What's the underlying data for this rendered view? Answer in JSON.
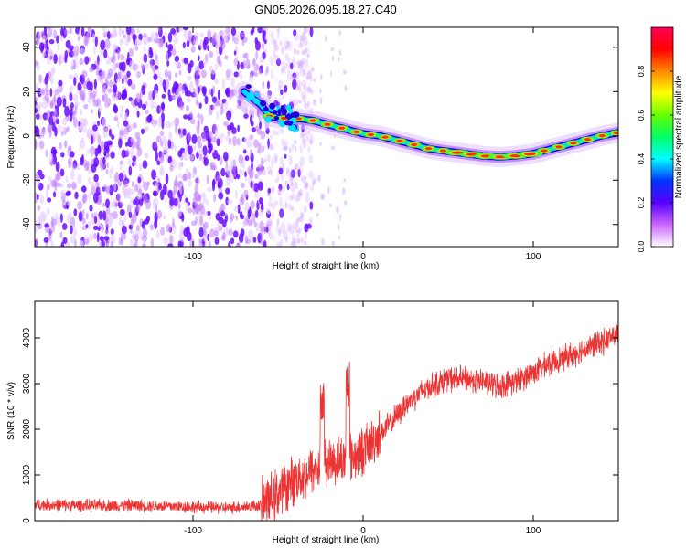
{
  "figure_title": "GN05.2026.095.18.27.C40",
  "chart_data": [
    {
      "type": "heatmap",
      "title": "GN05.2026.095.18.27.C40",
      "xlabel": "Height of straight line (km)",
      "ylabel": "Frequency (Hz)",
      "xlim": [
        -193,
        150
      ],
      "ylim": [
        -50,
        49
      ],
      "x_ticks": [
        {
          "value": -100,
          "label": "-100"
        },
        {
          "value": 0,
          "label": "0"
        },
        {
          "value": 100,
          "label": "100"
        }
      ],
      "y_ticks": [
        {
          "value": -40,
          "label": "-40"
        },
        {
          "value": -20,
          "label": "-20"
        },
        {
          "value": 0,
          "label": "0"
        },
        {
          "value": 20,
          "label": "20"
        },
        {
          "value": 40,
          "label": "40"
        }
      ],
      "noise_region_x": [
        -193,
        -55
      ],
      "ridge": {
        "x": [
          -70,
          -60,
          -55,
          -50,
          -40,
          -30,
          -20,
          -10,
          0,
          10,
          20,
          30,
          40,
          50,
          60,
          70,
          80,
          90,
          100,
          110,
          120,
          130,
          140,
          150
        ],
        "y": [
          20,
          14,
          9,
          8,
          8,
          7,
          5,
          3,
          1,
          0,
          -2,
          -4,
          -6,
          -7,
          -8,
          -9,
          -9.5,
          -9,
          -8,
          -6,
          -4,
          -2,
          0,
          1.5
        ]
      },
      "colorbar": {
        "label": "Normalized spectral amplitude",
        "range": [
          0,
          1
        ],
        "ticks": [
          {
            "value": 0.0,
            "label": "0.0"
          },
          {
            "value": 0.2,
            "label": "0.2"
          },
          {
            "value": 0.4,
            "label": "0.4"
          },
          {
            "value": 0.6,
            "label": "0.6"
          },
          {
            "value": 0.8,
            "label": "0.8"
          }
        ],
        "colors": [
          "#ffffff",
          "#cc66ff",
          "#5500ff",
          "#0033ff",
          "#00ffff",
          "#00ff66",
          "#66ff00",
          "#ffff00",
          "#ff8800",
          "#ff0000",
          "#ff0055"
        ]
      }
    },
    {
      "type": "line",
      "xlabel": "Height of straight line (km)",
      "ylabel": "SNR (10 * v/v)",
      "xlim": [
        -193,
        150
      ],
      "ylim": [
        0,
        4800
      ],
      "x_ticks": [
        {
          "value": -100,
          "label": "-100"
        },
        {
          "value": 0,
          "label": "0"
        },
        {
          "value": 100,
          "label": "100"
        }
      ],
      "y_ticks": [
        {
          "value": 0,
          "label": "0"
        },
        {
          "value": 1000,
          "label": "1000"
        },
        {
          "value": 2000,
          "label": "2000"
        },
        {
          "value": 3000,
          "label": "3000"
        },
        {
          "value": 4000,
          "label": "4000"
        }
      ],
      "color": "#ee3333",
      "series": [
        {
          "name": "SNR",
          "x": [
            -193,
            -160,
            -130,
            -100,
            -80,
            -60,
            -55,
            -50,
            -45,
            -40,
            -35,
            -30,
            -25,
            -20,
            -15,
            -10,
            -5,
            0,
            5,
            10,
            15,
            20,
            25,
            30,
            35,
            40,
            50,
            60,
            70,
            80,
            90,
            100,
            110,
            120,
            130,
            140,
            150
          ],
          "y": [
            350,
            330,
            330,
            300,
            280,
            330,
            450,
            600,
            750,
            900,
            1000,
            1100,
            1200,
            1300,
            1300,
            1350,
            1400,
            1550,
            1700,
            1900,
            2100,
            2300,
            2550,
            2700,
            2850,
            2950,
            3100,
            3100,
            3050,
            2950,
            3050,
            3250,
            3450,
            3600,
            3750,
            3900,
            4100
          ]
        }
      ],
      "annotations": [
        {
          "x": -24,
          "y": 3150,
          "label": ""
        },
        {
          "x": -9,
          "y": 3500,
          "label": ""
        }
      ]
    }
  ]
}
